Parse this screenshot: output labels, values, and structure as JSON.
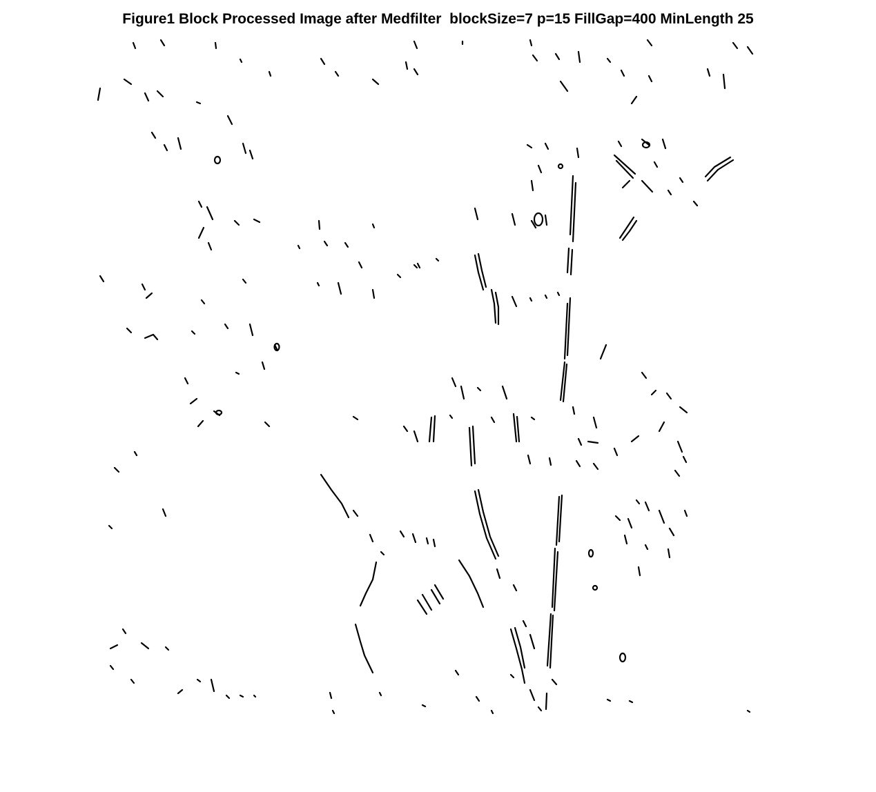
{
  "figure": {
    "title": "Figure1 Block Processed Image after Medfilter  blockSize=7 p=15 FillGap=400 MinLength 25"
  },
  "image": {
    "background_color": "#ffffff",
    "edge_color": "#000000"
  }
}
